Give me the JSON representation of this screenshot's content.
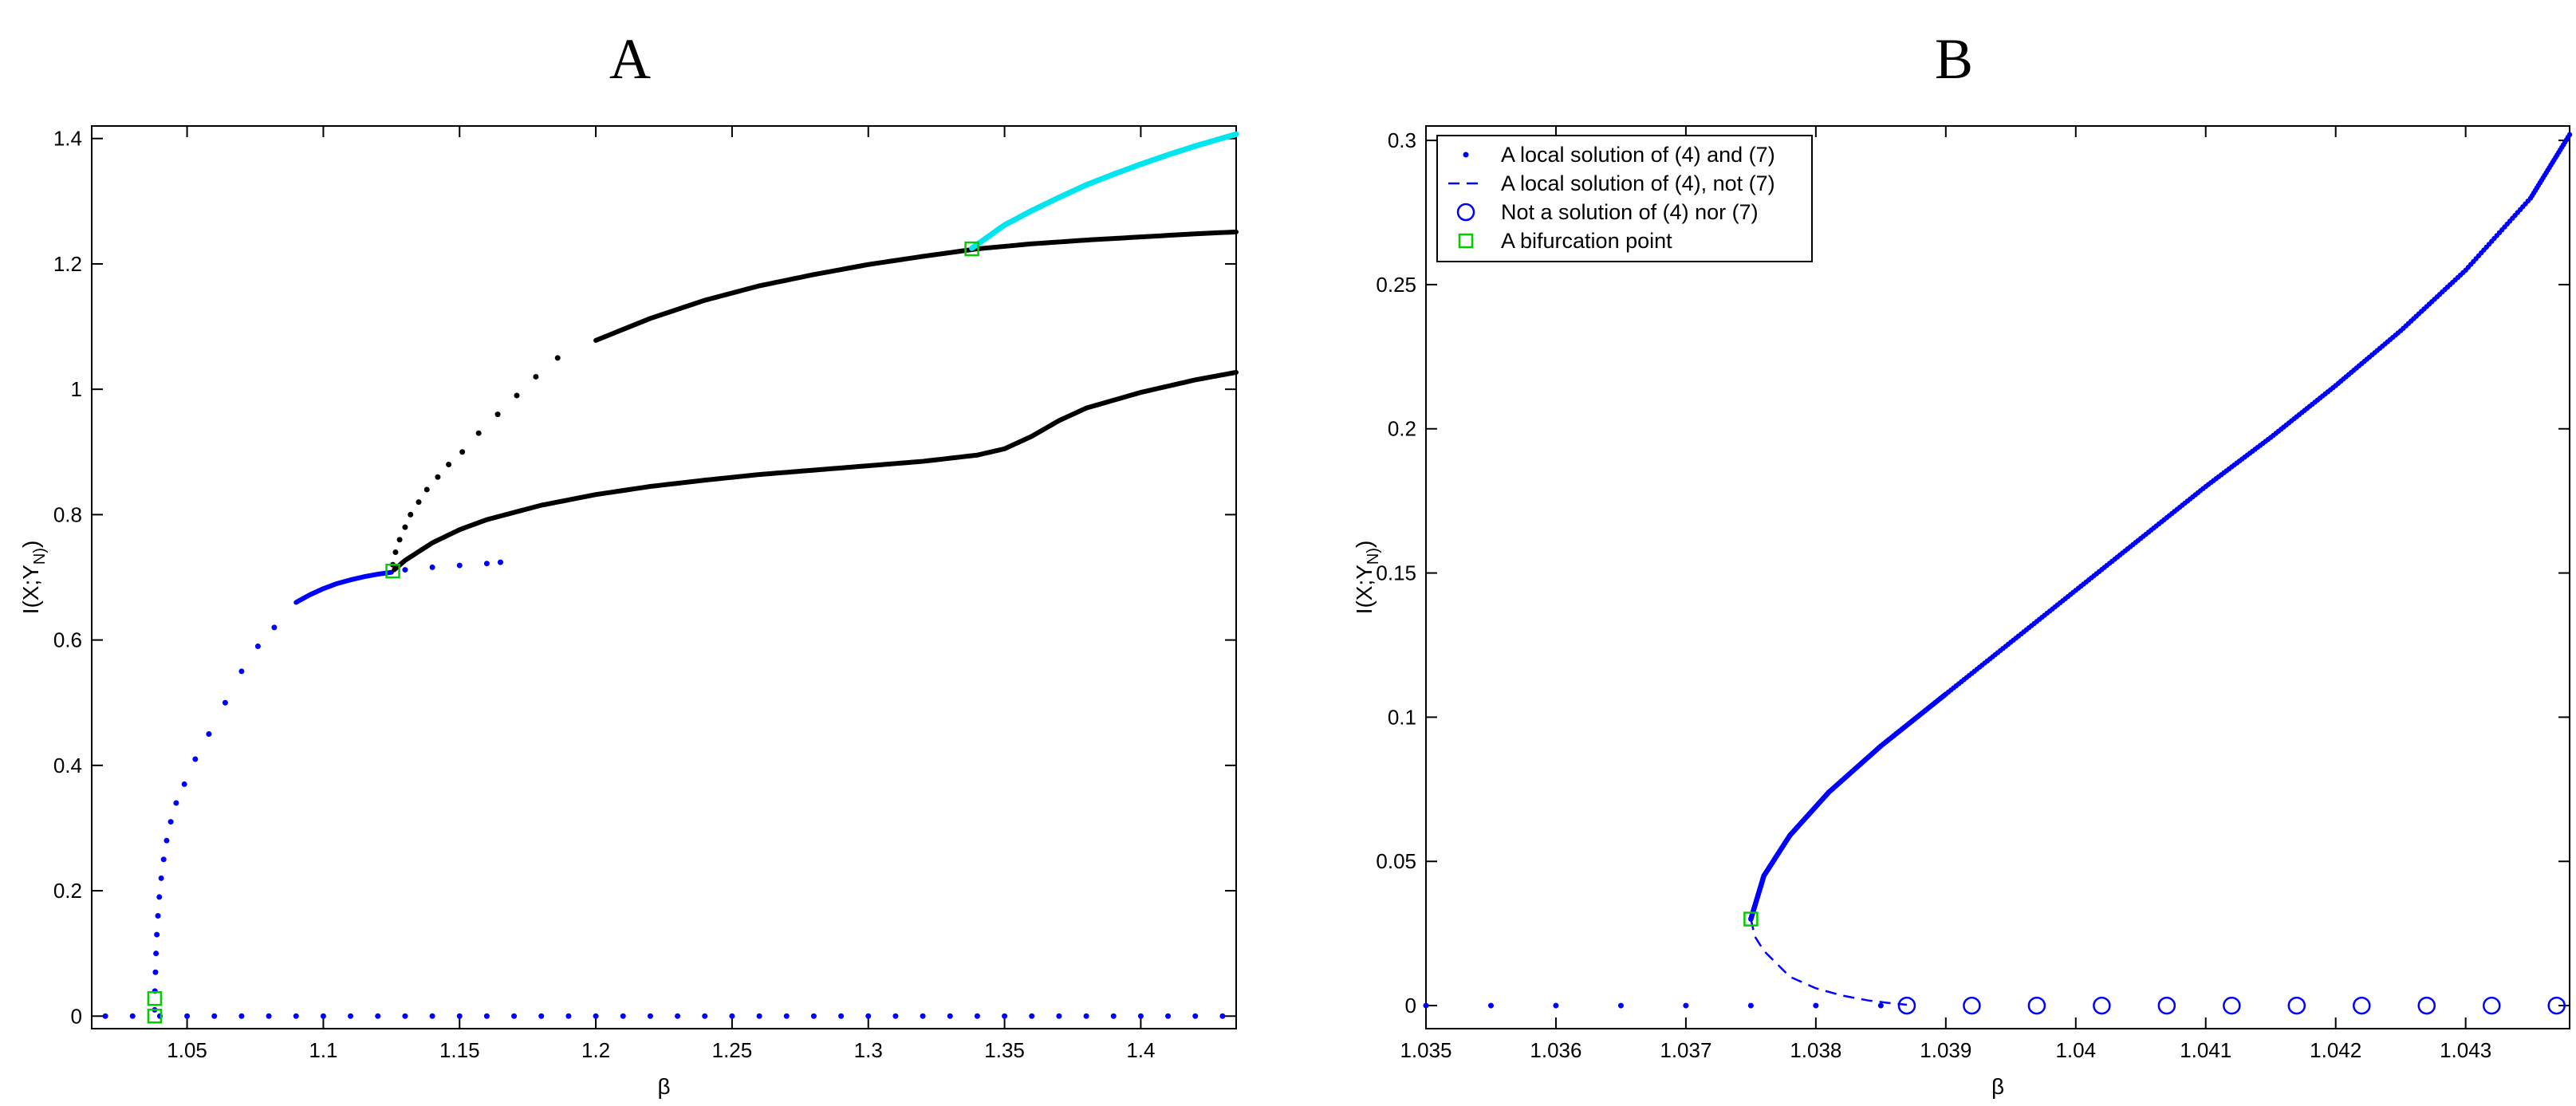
{
  "chart_data": [
    {
      "type": "scatter",
      "title": "A",
      "xlabel": "β",
      "ylabel": "I(X;Y_N)",
      "xlim": [
        1.015,
        1.435
      ],
      "ylim": [
        -0.02,
        1.42
      ],
      "xticks": [
        1.05,
        1.1,
        1.15,
        1.2,
        1.25,
        1.3,
        1.35,
        1.4
      ],
      "xtick_labels": [
        "1.05",
        "1.1",
        "1.15",
        "1.2",
        "1.25",
        "1.3",
        "1.35",
        "1.4"
      ],
      "yticks": [
        0,
        0.2,
        0.4,
        0.6,
        0.8,
        1.0,
        1.2,
        1.4
      ],
      "ytick_labels": [
        "0",
        "0.2",
        "0.4",
        "0.6",
        "0.8",
        "1",
        "1.2",
        "1.4"
      ],
      "grid": false,
      "legend": null,
      "series": [
        {
          "color": "#0000ff",
          "marker": "dot",
          "role": "trivial branch",
          "x": [
            1.02,
            1.03,
            1.04,
            1.05,
            1.06,
            1.07,
            1.08,
            1.09,
            1.1,
            1.11,
            1.12,
            1.13,
            1.14,
            1.15,
            1.16,
            1.17,
            1.18,
            1.19,
            1.2,
            1.21,
            1.22,
            1.23,
            1.24,
            1.25,
            1.26,
            1.27,
            1.28,
            1.29,
            1.3,
            1.31,
            1.32,
            1.33,
            1.34,
            1.35,
            1.36,
            1.37,
            1.38,
            1.39,
            1.4,
            1.41,
            1.42,
            1.43
          ],
          "y": [
            0,
            0,
            0,
            0,
            0,
            0,
            0,
            0,
            0,
            0,
            0,
            0,
            0,
            0,
            0,
            0,
            0,
            0,
            0,
            0,
            0,
            0,
            0,
            0,
            0,
            0,
            0,
            0,
            0,
            0,
            0,
            0,
            0,
            0,
            0,
            0,
            0,
            0,
            0,
            0,
            0,
            0
          ]
        },
        {
          "color": "#0000ff",
          "marker": "dot",
          "role": "first branch",
          "x": [
            1.0381,
            1.0382,
            1.0384,
            1.0386,
            1.0389,
            1.0393,
            1.0398,
            1.0405,
            1.0414,
            1.0425,
            1.044,
            1.046,
            1.049,
            1.053,
            1.058,
            1.064,
            1.07,
            1.076,
            1.082
          ],
          "y": [
            0.01,
            0.04,
            0.07,
            0.1,
            0.13,
            0.16,
            0.19,
            0.22,
            0.25,
            0.28,
            0.31,
            0.34,
            0.37,
            0.41,
            0.45,
            0.5,
            0.55,
            0.59,
            0.62
          ]
        },
        {
          "color": "#0000ff",
          "marker": "dot",
          "role": "first branch continued",
          "x": [
            1.09,
            1.095,
            1.1,
            1.105,
            1.11,
            1.115,
            1.12,
            1.125,
            1.13,
            1.14,
            1.15,
            1.16,
            1.165
          ],
          "y": [
            0.66,
            0.672,
            0.682,
            0.69,
            0.696,
            0.701,
            0.705,
            0.708,
            0.712,
            0.716,
            0.719,
            0.722,
            0.724
          ]
        },
        {
          "color": "#000000",
          "marker": "dot",
          "role": "upper branch",
          "x": [
            1.1255,
            1.1265,
            1.128,
            1.13,
            1.132,
            1.135,
            1.138,
            1.142,
            1.146,
            1.151,
            1.157,
            1.164,
            1.171,
            1.178,
            1.186
          ],
          "y": [
            0.72,
            0.74,
            0.76,
            0.78,
            0.8,
            0.82,
            0.84,
            0.86,
            0.88,
            0.9,
            0.93,
            0.96,
            0.99,
            1.02,
            1.05
          ],
          "note": "dense curve continues from x=1.20 to x=1.435",
          "x_cont": [
            1.2,
            1.22,
            1.24,
            1.26,
            1.28,
            1.3,
            1.32,
            1.34,
            1.36,
            1.38,
            1.4,
            1.42,
            1.435
          ],
          "y_cont": [
            1.078,
            1.113,
            1.142,
            1.165,
            1.183,
            1.199,
            1.212,
            1.224,
            1.232,
            1.238,
            1.243,
            1.248,
            1.251
          ]
        },
        {
          "color": "#000000",
          "marker": "dot",
          "role": "lower branch",
          "x": [
            1.126,
            1.13,
            1.14,
            1.15,
            1.16,
            1.18,
            1.2,
            1.22,
            1.24,
            1.26,
            1.28,
            1.3,
            1.32,
            1.34,
            1.35,
            1.36,
            1.37,
            1.38,
            1.4,
            1.42,
            1.435
          ],
          "y": [
            0.712,
            0.727,
            0.755,
            0.776,
            0.792,
            0.815,
            0.832,
            0.845,
            0.855,
            0.864,
            0.871,
            0.878,
            0.885,
            0.895,
            0.905,
            0.925,
            0.95,
            0.97,
            0.995,
            1.015,
            1.027
          ]
        },
        {
          "color": "#00e5ee",
          "marker": "line",
          "role": "cyan branch",
          "x": [
            1.338,
            1.35,
            1.36,
            1.37,
            1.38,
            1.39,
            1.4,
            1.41,
            1.42,
            1.435
          ],
          "y": [
            1.225,
            1.262,
            1.285,
            1.306,
            1.326,
            1.343,
            1.359,
            1.374,
            1.388,
            1.407
          ]
        }
      ],
      "bifurcation_points": {
        "color": "#00cc00",
        "x": [
          1.0381,
          1.0381,
          1.1255,
          1.338
        ],
        "y": [
          0.028,
          0.0,
          0.71,
          1.224
        ]
      }
    },
    {
      "type": "scatter",
      "title": "B",
      "xlabel": "β",
      "ylabel": "I(X;Y_N)",
      "xlim": [
        1.035,
        1.0438
      ],
      "ylim": [
        -0.008,
        0.305
      ],
      "xticks": [
        1.035,
        1.036,
        1.037,
        1.038,
        1.039,
        1.04,
        1.041,
        1.042,
        1.043
      ],
      "xtick_labels": [
        "1.035",
        "1.036",
        "1.037",
        "1.038",
        "1.039",
        "1.04",
        "1.041",
        "1.042",
        "1.043"
      ],
      "yticks": [
        0,
        0.05,
        0.1,
        0.15,
        0.2,
        0.25,
        0.3
      ],
      "ytick_labels": [
        "0",
        "0.05",
        "0.1",
        "0.15",
        "0.2",
        "0.25",
        "0.3"
      ],
      "grid": false,
      "legend": {
        "placement": "top-left",
        "entries": [
          {
            "label": "A local solution of (4) and (7)",
            "marker": "dot",
            "color": "#0000ff"
          },
          {
            "label": "A local solution of (4), not (7)",
            "marker": "dashed",
            "color": "#0000ff"
          },
          {
            "label": "Not a solution of (4) nor (7)",
            "marker": "circle",
            "color": "#0000ff"
          },
          {
            "label": "A bifurcation point",
            "marker": "square",
            "color": "#00cc00"
          }
        ]
      },
      "series": [
        {
          "kind": "dots",
          "color": "#0000ff",
          "role": "trivial solutions",
          "x": [
            1.035,
            1.0355,
            1.036,
            1.0365,
            1.037,
            1.0375,
            1.038,
            1.0385
          ],
          "y": [
            0,
            0,
            0,
            0,
            0,
            0,
            0,
            0
          ]
        },
        {
          "kind": "dots",
          "color": "#0000ff",
          "role": "branch",
          "x": [
            1.0375,
            1.0376,
            1.0378,
            1.0381,
            1.0385,
            1.039,
            1.0395,
            1.04,
            1.0405,
            1.041,
            1.0415,
            1.042,
            1.0425,
            1.043,
            1.0435,
            1.0438
          ],
          "y": [
            0.03,
            0.045,
            0.059,
            0.074,
            0.09,
            0.108,
            0.126,
            0.144,
            0.162,
            0.18,
            0.197,
            0.215,
            0.234,
            0.255,
            0.28,
            0.302
          ]
        },
        {
          "kind": "dashed",
          "color": "#0000ff",
          "role": "unstable branch",
          "x": [
            1.0375,
            1.03753,
            1.0376,
            1.0377,
            1.0378,
            1.038,
            1.0382,
            1.0384,
            1.0386,
            1.0387
          ],
          "y": [
            0.03,
            0.024,
            0.019,
            0.0145,
            0.01,
            0.006,
            0.0035,
            0.0018,
            0.0007,
            0.0003
          ]
        },
        {
          "kind": "circles",
          "color": "#0000ff",
          "role": "non solutions",
          "x": [
            1.0387,
            1.0392,
            1.0397,
            1.0402,
            1.0407,
            1.0412,
            1.0417,
            1.0422,
            1.0427,
            1.0432,
            1.0437
          ],
          "y": [
            0,
            0,
            0,
            0,
            0,
            0,
            0,
            0,
            0,
            0,
            0
          ]
        }
      ],
      "bifurcation_points": {
        "color": "#00cc00",
        "x": [
          1.0375
        ],
        "y": [
          0.03
        ]
      }
    }
  ]
}
